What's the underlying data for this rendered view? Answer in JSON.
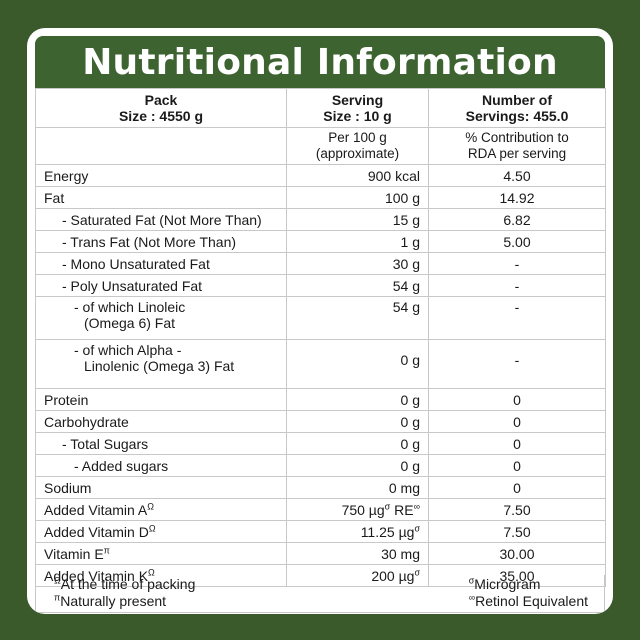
{
  "title": "Nutritional Information",
  "header": {
    "pack_label": "Pack",
    "pack_size": "Size : 4550 g",
    "serving_label": "Serving",
    "serving_size": "Size  : 10 g",
    "servings_label": "Number of",
    "servings_value": "Servings:  455.0"
  },
  "subheader": {
    "per_line1": "Per 100 g",
    "per_line2": "(approximate)",
    "rda_line1": "% Contribution to",
    "rda_line2": "RDA per serving"
  },
  "rows": [
    {
      "label": "Energy",
      "value": "900 kcal",
      "rda": "4.50"
    },
    {
      "label": "Fat",
      "value": "100 g",
      "rda": "14.92"
    },
    {
      "label": "- Saturated Fat (Not More Than)",
      "value": "15 g",
      "rda": "6.82"
    },
    {
      "label": "- Trans Fat (Not More Than)",
      "value": "1 g",
      "rda": "5.00"
    },
    {
      "label": "- Mono Unsaturated Fat",
      "value": "30 g",
      "rda": "-"
    },
    {
      "label": "- Poly Unsaturated Fat",
      "value": "54 g",
      "rda": "-"
    },
    {
      "label": "- of which Linoleic",
      "label2": "(Omega 6) Fat",
      "value": "54 g",
      "rda": "-"
    },
    {
      "label": "- of which Alpha -",
      "label2": "Linolenic (Omega 3) Fat",
      "value": "0 g",
      "rda": "-"
    },
    {
      "label": "Protein",
      "value": "0 g",
      "rda": "0"
    },
    {
      "label": "Carbohydrate",
      "value": "0 g",
      "rda": "0"
    },
    {
      "label": "- Total Sugars",
      "value": "0 g",
      "rda": "0"
    },
    {
      "label": "- Added sugars",
      "value": "0 g",
      "rda": "0"
    },
    {
      "label": "Sodium",
      "value": "0 mg",
      "rda": "0"
    },
    {
      "label": "Added Vitamin A",
      "mark": "Ω",
      "value": "750 µg",
      "value_mark": "σ",
      "value_suffix": " RE",
      "suffix_mark": "∞",
      "rda": "7.50"
    },
    {
      "label": "Added Vitamin D",
      "mark": "Ω",
      "value": "11.25 µg",
      "value_mark": "σ",
      "rda": "7.50"
    },
    {
      "label": "Vitamin E",
      "mark": "π",
      "value": "30 mg",
      "rda": "30.00"
    },
    {
      "label": "Added Vitamin K",
      "mark": "Ω",
      "value": "200 µg",
      "value_mark": "σ",
      "rda": "35.00"
    }
  ],
  "footnotes": {
    "omega_mark": "Ω",
    "omega_text": "At the time of packing",
    "pi_mark": "π",
    "pi_text": "Naturally present",
    "sigma_mark": "σ",
    "sigma_text": "Microgram",
    "inf_mark": "∞",
    "inf_text": "Retinol Equivalent"
  },
  "colors": {
    "background": "#3a5a2c",
    "title_bar": "#3d6330",
    "title_text": "#ffffff"
  }
}
